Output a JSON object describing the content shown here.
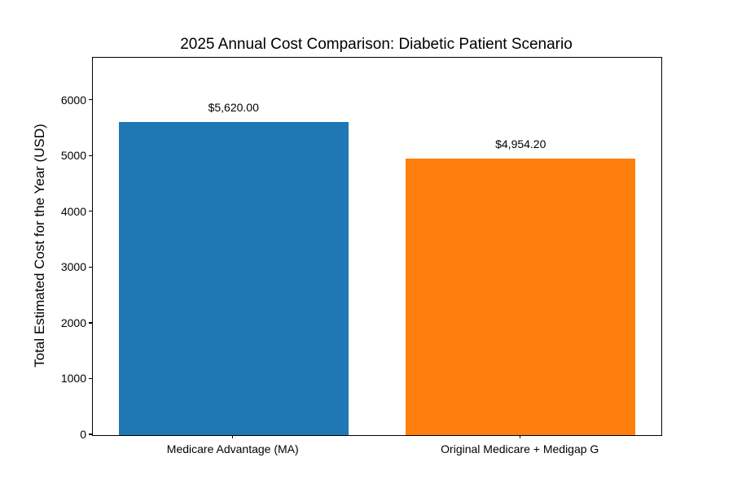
{
  "chart_data": {
    "type": "bar",
    "title": "2025 Annual Cost Comparison: Diabetic Patient Scenario",
    "ylabel": "Total Estimated Cost for the Year (USD)",
    "xlabel": "",
    "categories": [
      "Medicare Advantage (MA)",
      "Original Medicare + Medigap G"
    ],
    "values": [
      5620.0,
      4954.2
    ],
    "bar_labels": [
      "$5,620.00",
      "$4,954.20"
    ],
    "bar_colors": [
      "#1f77b4",
      "#ff7f0e"
    ],
    "yticks": [
      0,
      1000,
      2000,
      3000,
      4000,
      5000,
      6000
    ],
    "ylim": [
      0,
      6770
    ],
    "grid": false,
    "legend": null,
    "background_color": "#ffffff",
    "text_color": "#000000"
  }
}
